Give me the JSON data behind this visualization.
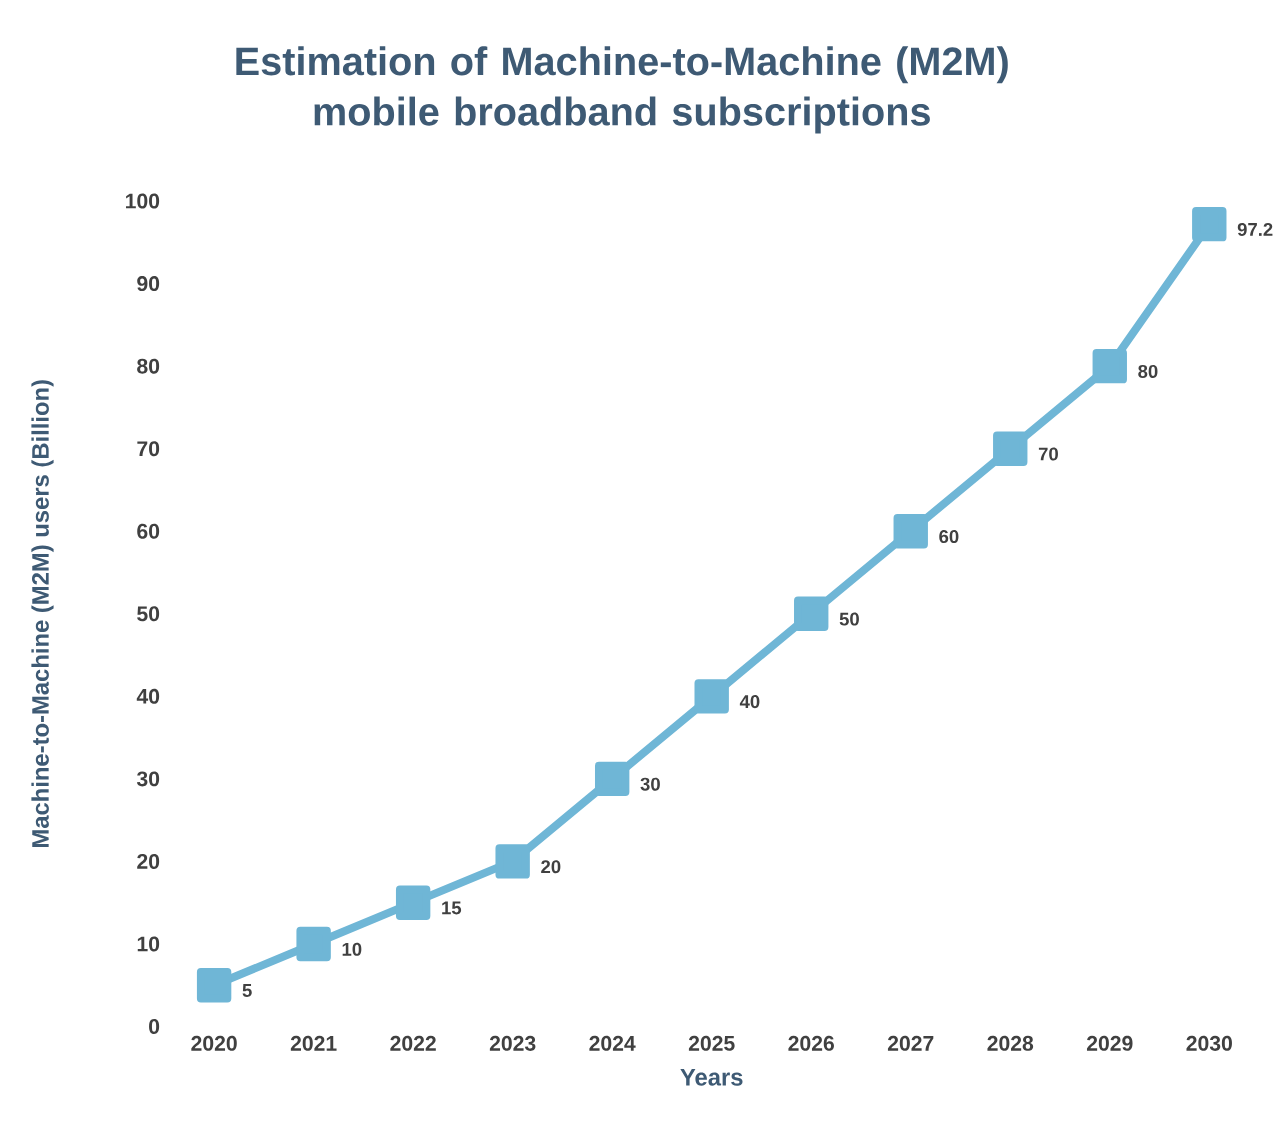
{
  "chart_data": {
    "type": "line",
    "title": "Estimation of Machine-to-Machine (M2M)\nmobile broadband subscriptions",
    "xlabel": "Years",
    "ylabel": "Machine-to-Machine (M2M) users (Billion)",
    "categories": [
      "2020",
      "2021",
      "2022",
      "2023",
      "2024",
      "2025",
      "2026",
      "2027",
      "2028",
      "2029",
      "2030"
    ],
    "values": [
      5,
      10,
      15,
      20,
      30,
      40,
      50,
      60,
      70,
      80,
      97.2
    ],
    "color": "#6fb6d6",
    "marker": "square",
    "data_labels": true,
    "ylim": [
      0,
      100
    ],
    "yticks": [
      0,
      10,
      20,
      30,
      40,
      50,
      60,
      70,
      80,
      90,
      100
    ]
  }
}
